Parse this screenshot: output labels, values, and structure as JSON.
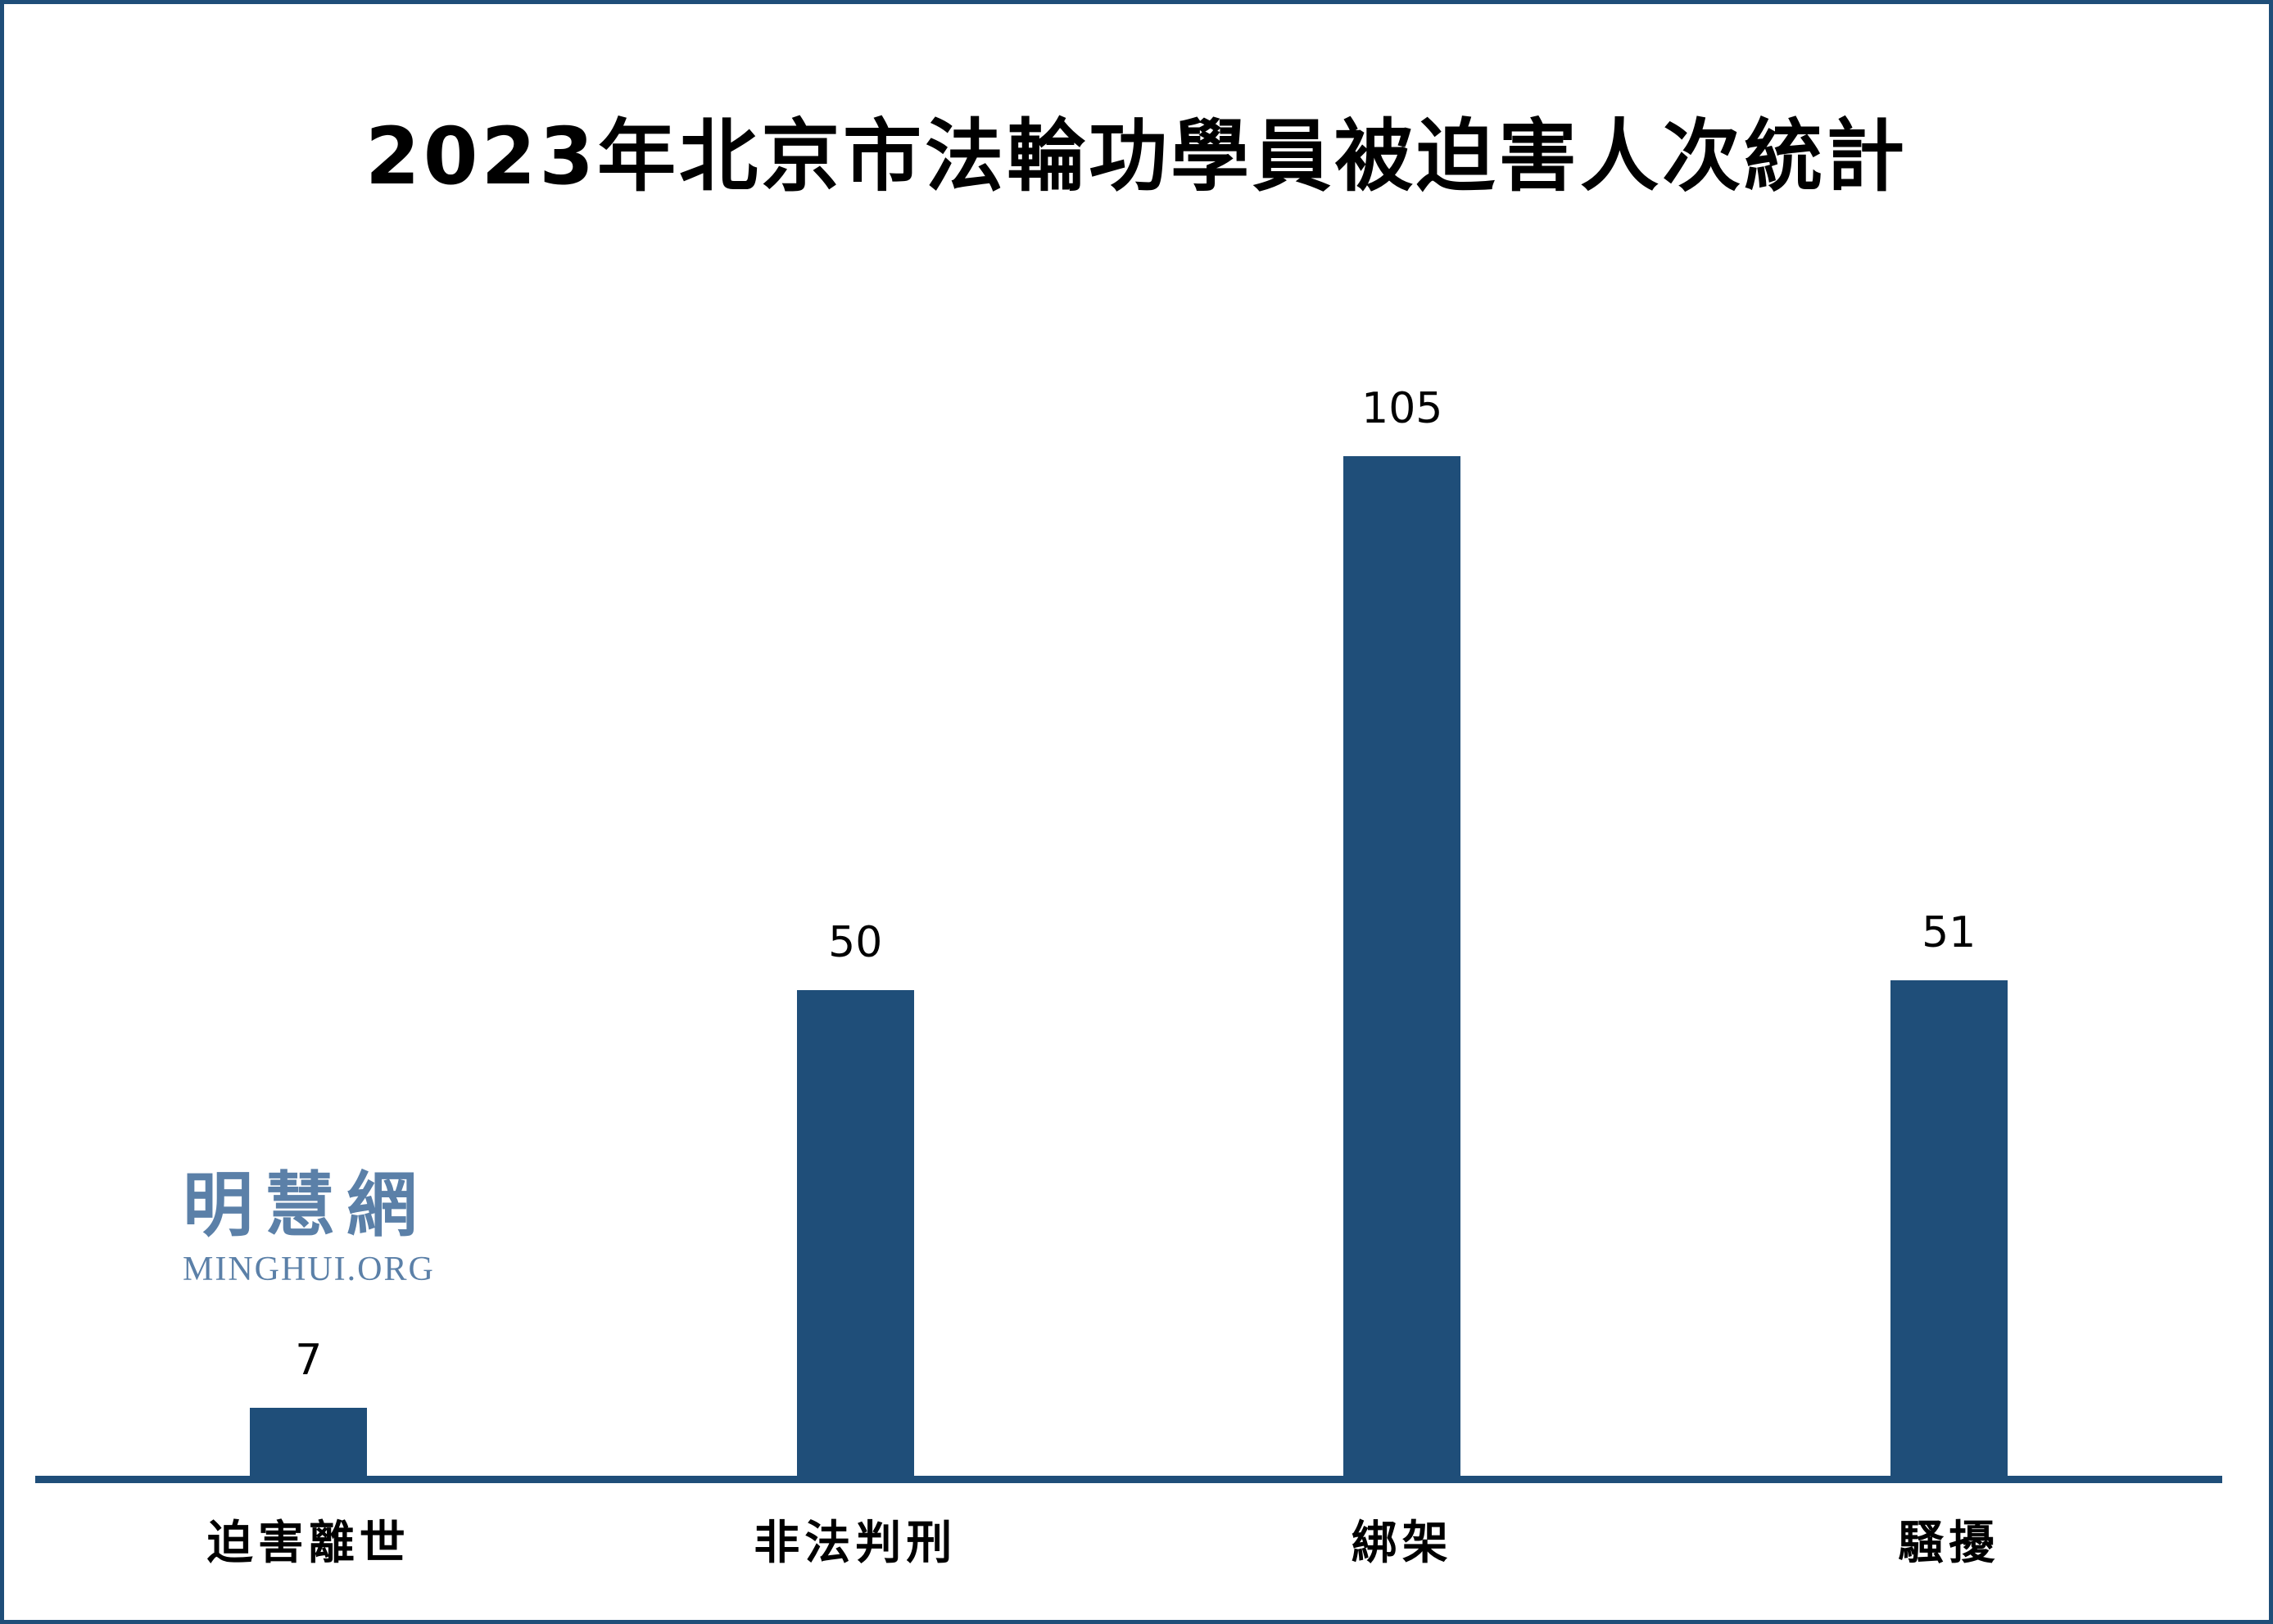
{
  "page": {
    "background": "#FFFFFF",
    "border_color": "#1F4E79"
  },
  "watermark": {
    "cn": "明慧網",
    "en": "MINGHUI.ORG",
    "color": "#5B80A8"
  },
  "chart_data": {
    "type": "bar",
    "title": "2023年北京市法輪功學員被迫害人次統計",
    "categories": [
      "迫害離世",
      "非法判刑",
      "綁架",
      "騷擾"
    ],
    "values": [
      7,
      50,
      105,
      51
    ],
    "data_labels": [
      7,
      50,
      105,
      51
    ],
    "bar_color": "#1F4E79",
    "axis_color": "#1F4E79",
    "title_color": "#000000",
    "label_color": "#000000",
    "xlabel": "",
    "ylabel": "",
    "ylim": [
      0,
      110
    ],
    "grid": false,
    "legend": "none"
  }
}
